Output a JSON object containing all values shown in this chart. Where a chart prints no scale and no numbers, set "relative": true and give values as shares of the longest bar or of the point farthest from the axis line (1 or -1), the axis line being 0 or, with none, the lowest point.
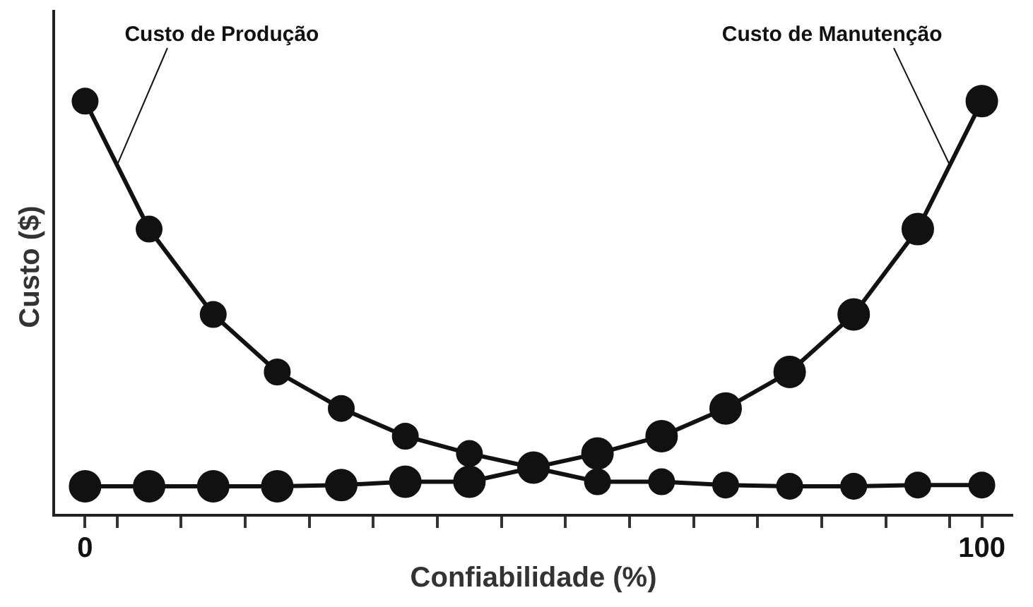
{
  "chart_data": {
    "type": "line",
    "xlabel": "Confiabilidade (%)",
    "ylabel": "Custo ($)",
    "relative": true,
    "x": [
      0,
      7.14,
      14.29,
      21.43,
      28.57,
      35.71,
      42.86,
      50,
      57.14,
      64.29,
      71.43,
      78.57,
      85.71,
      92.86,
      100
    ],
    "xlim": [
      -3.5,
      103.5
    ],
    "xticks": [
      0,
      {
        "value": 3.57,
        "label": null
      },
      {
        "value": 10.71,
        "label": null
      },
      {
        "value": 17.86,
        "label": null
      },
      {
        "value": 25,
        "label": null
      },
      {
        "value": 32.14,
        "label": null
      },
      {
        "value": 39.29,
        "label": null
      },
      {
        "value": 46.43,
        "label": null
      },
      {
        "value": 53.57,
        "label": null
      },
      {
        "value": 60.71,
        "label": null
      },
      {
        "value": 67.86,
        "label": null
      },
      {
        "value": 75,
        "label": null
      },
      {
        "value": 82.14,
        "label": null
      },
      {
        "value": 89.29,
        "label": null
      },
      {
        "value": 96.43,
        "label": null
      },
      100
    ],
    "series": [
      {
        "name": "Custo de Produção",
        "color": "#111111",
        "values": [
          1,
          0.691,
          0.485,
          0.346,
          0.258,
          0.191,
          0.149,
          0.115,
          0.081,
          0.081,
          0.073,
          0.07,
          0.07,
          0.073,
          0.073
        ]
      },
      {
        "name": "Custo de Manutenção",
        "color": "#111111",
        "values": [
          0.07,
          0.07,
          0.07,
          0.07,
          0.073,
          0.081,
          0.081,
          0.115,
          0.149,
          0.191,
          0.258,
          0.346,
          0.485,
          0.691,
          1
        ]
      }
    ],
    "marker": "circle",
    "line_style": "solid",
    "legend": false,
    "grid": false
  }
}
